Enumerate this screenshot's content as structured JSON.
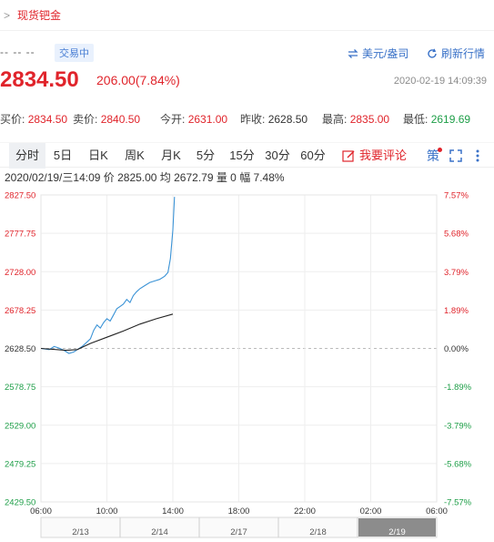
{
  "breadcrumb": {
    "separator": ">",
    "label": "现货钯金"
  },
  "header": {
    "code": "-- -- --",
    "status_badge": "交易中",
    "currency_label": "美元/盎司",
    "refresh_label": "刷新行情"
  },
  "price": {
    "last": "2834.50",
    "change": "206.00(7.84%)",
    "timestamp": "2020-02-19 14:09:39"
  },
  "quote": {
    "buy_label": "买价:",
    "buy": "2834.50",
    "sell_label": "卖价:",
    "sell": "2840.50",
    "open_label": "今开:",
    "open": "2631.00",
    "prev_close_label": "昨收:",
    "prev_close": "2628.50",
    "high_label": "最高:",
    "high": "2835.00",
    "low_label": "最低:",
    "low": "2619.69"
  },
  "tabs": [
    "分时",
    "5日",
    "日K",
    "周K",
    "月K",
    "5分",
    "15分",
    "30分",
    "60分"
  ],
  "comment_label": "我要评论",
  "tools": {
    "strategy": "策",
    "fullscreen_icon": "fullscreen-icon",
    "more_icon": "more-icon"
  },
  "info_line": "2020/02/19/三14:09  价 2825.00  均 2672.79  量 0  幅 7.48%",
  "colors": {
    "up": "#e0242b",
    "down": "#1d9e47",
    "accent": "#3a72c8",
    "price_line": "#3b93d6",
    "avg_line": "#222222"
  },
  "chart_data": {
    "type": "line",
    "y_labels_left": [
      "2827.50",
      "2777.75",
      "2728.00",
      "2678.25",
      "2628.50",
      "2578.75",
      "2529.00",
      "2479.25",
      "2429.50"
    ],
    "y_labels_right": [
      "7.57%",
      "5.68%",
      "3.79%",
      "1.89%",
      "0.00%",
      "-1.89%",
      "-3.79%",
      "-5.68%",
      "-7.57%"
    ],
    "x_labels": [
      "06:00",
      "10:00",
      "14:00",
      "18:00",
      "22:00",
      "02:00",
      "06:00"
    ],
    "ylim": [
      2429.5,
      2827.5
    ],
    "xlim": [
      0,
      24
    ],
    "series": [
      {
        "x": [
          0,
          0.5,
          0.8,
          1.1,
          1.4,
          1.7,
          2.0,
          2.2,
          2.5,
          2.8,
          3.0,
          3.2,
          3.4,
          3.6,
          3.8,
          4.0,
          4.2,
          4.4,
          4.6,
          4.8,
          5.0,
          5.2,
          5.4,
          5.6,
          5.8,
          6.0,
          6.3,
          6.6,
          6.9,
          7.2,
          7.5,
          7.7,
          7.85,
          8.0,
          8.1
        ],
        "values": [
          2628.5,
          2627,
          2631,
          2629,
          2626,
          2622,
          2624,
          2627,
          2631,
          2637,
          2641,
          2652,
          2659,
          2655,
          2662,
          2667,
          2664,
          2672,
          2680,
          2683,
          2686,
          2692,
          2688,
          2697,
          2702,
          2706,
          2710,
          2714,
          2716,
          2718,
          2722,
          2727,
          2745,
          2782,
          2825
        ]
      },
      {
        "x": [
          0,
          1.5,
          2.2,
          3.0,
          4.0,
          5.0,
          6.0,
          7.0,
          8.0
        ],
        "values": [
          2628.5,
          2626,
          2627,
          2635,
          2643,
          2651,
          2660,
          2667,
          2673
        ]
      }
    ],
    "date_labels": [
      "2/13",
      "2/14",
      "2/17",
      "2/18",
      "2/19"
    ]
  }
}
